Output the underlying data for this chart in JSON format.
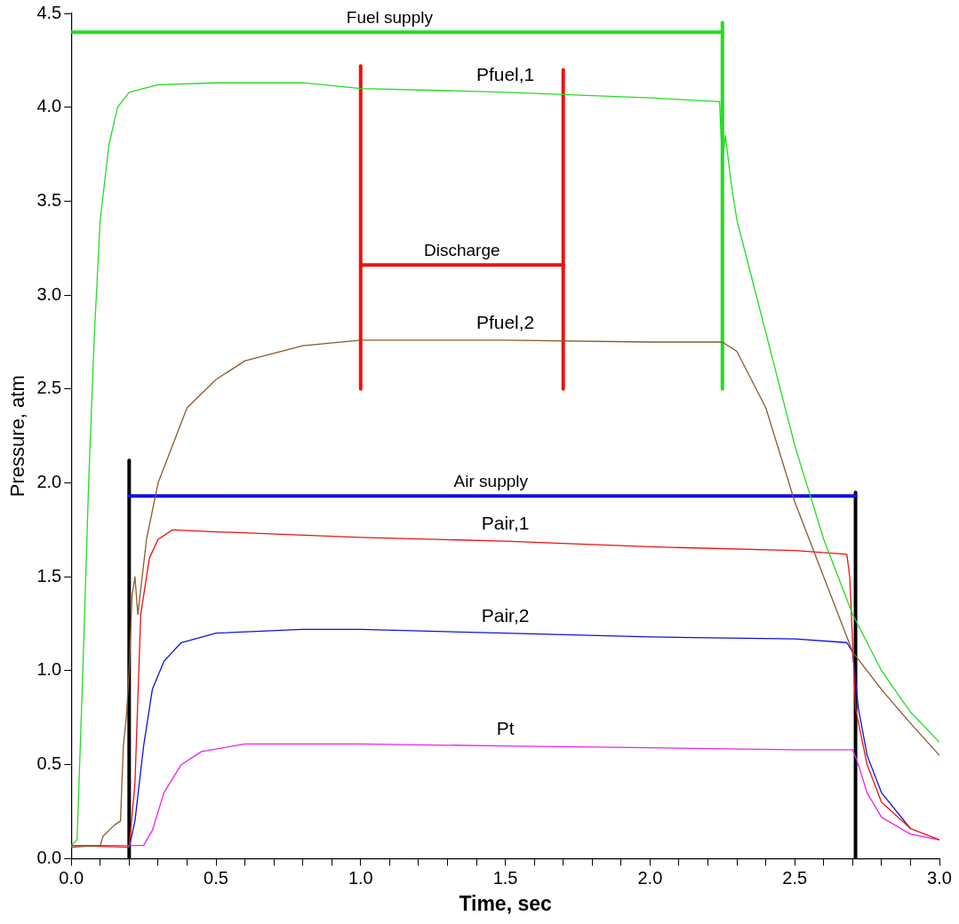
{
  "chart_data": {
    "type": "line",
    "xlabel": "Time, sec",
    "ylabel": "Pressure, atm",
    "xlim": [
      0,
      3
    ],
    "ylim": [
      0,
      4.5
    ],
    "xticks": [
      {
        "value": 0,
        "label": "0.0"
      },
      {
        "value": 0.1,
        "label": null
      },
      {
        "value": 0.2,
        "label": null
      },
      {
        "value": 0.3,
        "label": null
      },
      {
        "value": 0.4,
        "label": null
      },
      {
        "value": 0.5,
        "label": "0.5"
      },
      {
        "value": 0.6,
        "label": null
      },
      {
        "value": 0.7,
        "label": null
      },
      {
        "value": 0.8,
        "label": null
      },
      {
        "value": 0.9,
        "label": null
      },
      {
        "value": 1,
        "label": "1.0"
      },
      {
        "value": 1.1,
        "label": null
      },
      {
        "value": 1.2,
        "label": null
      },
      {
        "value": 1.3,
        "label": null
      },
      {
        "value": 1.4,
        "label": null
      },
      {
        "value": 1.5,
        "label": "1.5"
      },
      {
        "value": 1.6,
        "label": null
      },
      {
        "value": 1.7,
        "label": null
      },
      {
        "value": 1.8,
        "label": null
      },
      {
        "value": 1.9,
        "label": null
      },
      {
        "value": 2,
        "label": "2.0"
      },
      {
        "value": 2.1,
        "label": null
      },
      {
        "value": 2.2,
        "label": null
      },
      {
        "value": 2.3,
        "label": null
      },
      {
        "value": 2.4,
        "label": null
      },
      {
        "value": 2.5,
        "label": "2.5"
      },
      {
        "value": 2.6,
        "label": null
      },
      {
        "value": 2.7,
        "label": null
      },
      {
        "value": 2.8,
        "label": null
      },
      {
        "value": 2.9,
        "label": null
      },
      {
        "value": 3,
        "label": "3.0"
      }
    ],
    "yticks": [
      {
        "value": 0,
        "label": "0.0"
      },
      {
        "value": 0.5,
        "label": "0.5"
      },
      {
        "value": 1,
        "label": "1.0"
      },
      {
        "value": 1.5,
        "label": "1.5"
      },
      {
        "value": 2,
        "label": "2.0"
      },
      {
        "value": 2.5,
        "label": "2.5"
      },
      {
        "value": 3,
        "label": "3.0"
      },
      {
        "value": 3.5,
        "label": "3.5"
      },
      {
        "value": 4,
        "label": "4.0"
      },
      {
        "value": 4.5,
        "label": "4.5"
      }
    ],
    "grid": false,
    "legend": false,
    "marker": "none",
    "line_style": "solid",
    "series": [
      {
        "name": "Pfuel,1",
        "color": "#22dd22",
        "x": [
          0,
          0.02,
          0.04,
          0.06,
          0.08,
          0.1,
          0.13,
          0.16,
          0.2,
          0.3,
          0.5,
          0.8,
          1.0,
          1.5,
          2.0,
          2.24,
          2.25,
          2.26,
          2.28,
          2.3,
          2.35,
          2.4,
          2.5,
          2.6,
          2.7,
          2.8,
          2.9,
          3.0
        ],
        "values": [
          0.07,
          0.1,
          1.0,
          2.0,
          2.8,
          3.4,
          3.8,
          4.0,
          4.08,
          4.12,
          4.13,
          4.13,
          4.1,
          4.08,
          4.05,
          4.03,
          3.7,
          3.85,
          3.6,
          3.4,
          3.1,
          2.8,
          2.2,
          1.7,
          1.3,
          1.0,
          0.78,
          0.62
        ]
      },
      {
        "name": "Pfuel,2",
        "color": "#8b5a2b",
        "x": [
          0,
          0.1,
          0.11,
          0.15,
          0.17,
          0.18,
          0.19,
          0.2,
          0.21,
          0.22,
          0.23,
          0.26,
          0.3,
          0.35,
          0.4,
          0.5,
          0.6,
          0.8,
          1.0,
          1.5,
          2.0,
          2.25,
          2.3,
          2.4,
          2.5,
          2.6,
          2.7,
          2.8,
          2.9,
          3.0
        ],
        "values": [
          0.06,
          0.07,
          0.12,
          0.18,
          0.2,
          0.6,
          0.75,
          1.0,
          1.4,
          1.5,
          1.3,
          1.7,
          2.0,
          2.2,
          2.4,
          2.55,
          2.65,
          2.73,
          2.76,
          2.76,
          2.75,
          2.75,
          2.7,
          2.4,
          1.9,
          1.5,
          1.1,
          0.9,
          0.72,
          0.55
        ]
      },
      {
        "name": "Pair,1",
        "color": "#ee1111",
        "x": [
          0,
          0.2,
          0.22,
          0.24,
          0.27,
          0.3,
          0.35,
          0.5,
          1.0,
          1.5,
          2.0,
          2.5,
          2.68,
          2.69,
          2.71,
          2.75,
          2.8,
          2.9,
          3.0
        ],
        "values": [
          0.07,
          0.06,
          0.4,
          1.3,
          1.6,
          1.7,
          1.75,
          1.74,
          1.71,
          1.69,
          1.66,
          1.64,
          1.62,
          1.5,
          0.8,
          0.5,
          0.3,
          0.16,
          0.1
        ]
      },
      {
        "name": "Pair,2",
        "color": "#1111dd",
        "x": [
          0.2,
          0.22,
          0.25,
          0.28,
          0.32,
          0.38,
          0.5,
          0.8,
          1.0,
          1.5,
          2.0,
          2.5,
          2.68,
          2.7,
          2.72,
          2.75,
          2.8,
          2.9
        ],
        "values": [
          0.06,
          0.2,
          0.6,
          0.9,
          1.05,
          1.15,
          1.2,
          1.22,
          1.22,
          1.2,
          1.18,
          1.17,
          1.15,
          1.1,
          0.8,
          0.55,
          0.35,
          0.16
        ]
      },
      {
        "name": "Pt",
        "color": "#ee22ee",
        "x": [
          0,
          0.25,
          0.28,
          0.32,
          0.38,
          0.45,
          0.6,
          1.0,
          1.5,
          2.0,
          2.5,
          2.7,
          2.72,
          2.75,
          2.8,
          2.9,
          3.0
        ],
        "values": [
          0.07,
          0.07,
          0.15,
          0.35,
          0.5,
          0.57,
          0.61,
          0.61,
          0.6,
          0.59,
          0.58,
          0.58,
          0.5,
          0.35,
          0.22,
          0.13,
          0.1
        ]
      },
      {
        "color": "#22dd22",
        "x": [
          0,
          2.25
        ],
        "values": [
          4.4,
          4.4
        ]
      },
      {
        "color": "#22dd22",
        "x": [
          2.25,
          2.25
        ],
        "values": [
          2.5,
          4.45
        ]
      },
      {
        "color": "#ee1111",
        "x": [
          1.0,
          1.7
        ],
        "values": [
          3.16,
          3.16
        ]
      },
      {
        "color": "#ee1111",
        "x": [
          1.0,
          1.0
        ],
        "values": [
          2.5,
          4.22
        ]
      },
      {
        "color": "#ee1111",
        "x": [
          1.7,
          1.7
        ],
        "values": [
          2.5,
          4.2
        ]
      },
      {
        "color": "#1111dd",
        "x": [
          0.2,
          2.71
        ],
        "values": [
          1.93,
          1.93
        ]
      },
      {
        "color": "#000000",
        "x": [
          0.2,
          0.2
        ],
        "values": [
          0,
          2.12
        ]
      },
      {
        "color": "#000000",
        "x": [
          2.71,
          2.71
        ],
        "values": [
          0,
          1.95
        ]
      }
    ],
    "annotations": [
      {
        "text": "Fuel supply",
        "x": 1.1,
        "y": 4.4
      },
      {
        "text": "Discharge",
        "x": 1.35,
        "y": 3.16
      },
      {
        "text": "Air supply",
        "x": 1.45,
        "y": 1.93
      }
    ]
  }
}
